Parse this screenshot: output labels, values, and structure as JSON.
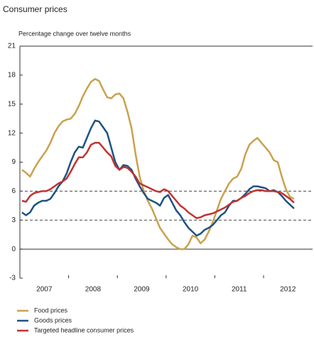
{
  "chart_data": {
    "type": "line",
    "title": "Consumer prices",
    "subtitle": "Percentage change over twelve months",
    "x": [
      "2007",
      "2007",
      "2007",
      "2007",
      "2007",
      "2007",
      "2007",
      "2007",
      "2007",
      "2007",
      "2007",
      "2007",
      "2008",
      "2008",
      "2008",
      "2008",
      "2008",
      "2008",
      "2008",
      "2008",
      "2008",
      "2008",
      "2008",
      "2008",
      "2009",
      "2009",
      "2009",
      "2009",
      "2009",
      "2009",
      "2009",
      "2009",
      "2009",
      "2009",
      "2009",
      "2009",
      "2010",
      "2010",
      "2010",
      "2010",
      "2010",
      "2010",
      "2010",
      "2010",
      "2010",
      "2010",
      "2010",
      "2010",
      "2011",
      "2011",
      "2011",
      "2011",
      "2011",
      "2011",
      "2011",
      "2011",
      "2011",
      "2011",
      "2011",
      "2011",
      "2012",
      "2012",
      "2012",
      "2012",
      "2012",
      "2012",
      "2012",
      "2012"
    ],
    "series": [
      {
        "name": "Food prices",
        "color": "#c9a24e",
        "values": [
          8.2,
          7.9,
          7.5,
          8.3,
          9,
          9.6,
          10.2,
          11,
          12,
          12.7,
          13.2,
          13.4,
          13.5,
          14,
          14.8,
          15.8,
          16.6,
          17.3,
          17.6,
          17.4,
          16.5,
          15.7,
          15.6,
          16,
          16.1,
          15.6,
          14.2,
          12.5,
          9.8,
          7.5,
          6,
          5,
          4.2,
          3.2,
          2.2,
          1.6,
          1,
          0.5,
          0.2,
          0,
          0,
          0.5,
          1.4,
          1.2,
          0.6,
          1,
          1.8,
          2.8,
          4,
          5.2,
          6,
          6.8,
          7.3,
          7.5,
          8.3,
          9.8,
          10.8,
          11.2,
          11.5,
          11,
          10.5,
          10,
          9.2,
          9,
          7.5,
          6.2,
          5.4,
          5.2
        ]
      },
      {
        "name": "Goods prices",
        "color": "#1d5381",
        "values": [
          3.8,
          3.5,
          3.8,
          4.5,
          4.8,
          5,
          5,
          5.2,
          5.8,
          6.5,
          7,
          7.8,
          9,
          10,
          10.6,
          10.5,
          11.5,
          12.5,
          13.3,
          13.2,
          12.6,
          12,
          10.5,
          9,
          8.2,
          8.7,
          8.6,
          8.2,
          7.3,
          6.5,
          5.8,
          5.2,
          5,
          4.8,
          4.5,
          5.3,
          5.6,
          4.8,
          4,
          3.5,
          2.8,
          2.2,
          1.8,
          1.4,
          1.6,
          2,
          2.2,
          2.5,
          3,
          3.5,
          3.8,
          4.5,
          5,
          5,
          5.3,
          5.7,
          6.2,
          6.5,
          6.5,
          6.4,
          6.3,
          6,
          6.1,
          5.9,
          5.5,
          5,
          4.6,
          4.2
        ]
      },
      {
        "name": "Targeted headline consumer prices",
        "color": "#c1332f",
        "values": [
          5,
          4.9,
          5.5,
          5.8,
          5.9,
          6,
          6,
          6.2,
          6.5,
          6.8,
          7,
          7.3,
          8,
          8.8,
          9.5,
          9.5,
          10,
          10.8,
          11,
          11,
          10.5,
          10,
          9.6,
          8.6,
          8.2,
          8.5,
          8.4,
          8,
          7.5,
          6.8,
          6.6,
          6.4,
          6.2,
          6,
          5.9,
          6.2,
          6,
          5.5,
          5,
          4.5,
          4.2,
          3.8,
          3.5,
          3.2,
          3.3,
          3.5,
          3.6,
          3.7,
          3.9,
          4.1,
          4.3,
          4.6,
          4.9,
          5,
          5.3,
          5.5,
          5.8,
          6,
          6.1,
          6.1,
          6,
          6,
          6,
          5.9,
          5.8,
          5.5,
          5.2,
          4.8
        ]
      }
    ],
    "ylim": [
      -3,
      21
    ],
    "yticks": [
      21,
      18,
      15,
      12,
      9,
      6,
      3,
      0,
      -3
    ],
    "reference_lines": [
      6,
      3
    ]
  }
}
